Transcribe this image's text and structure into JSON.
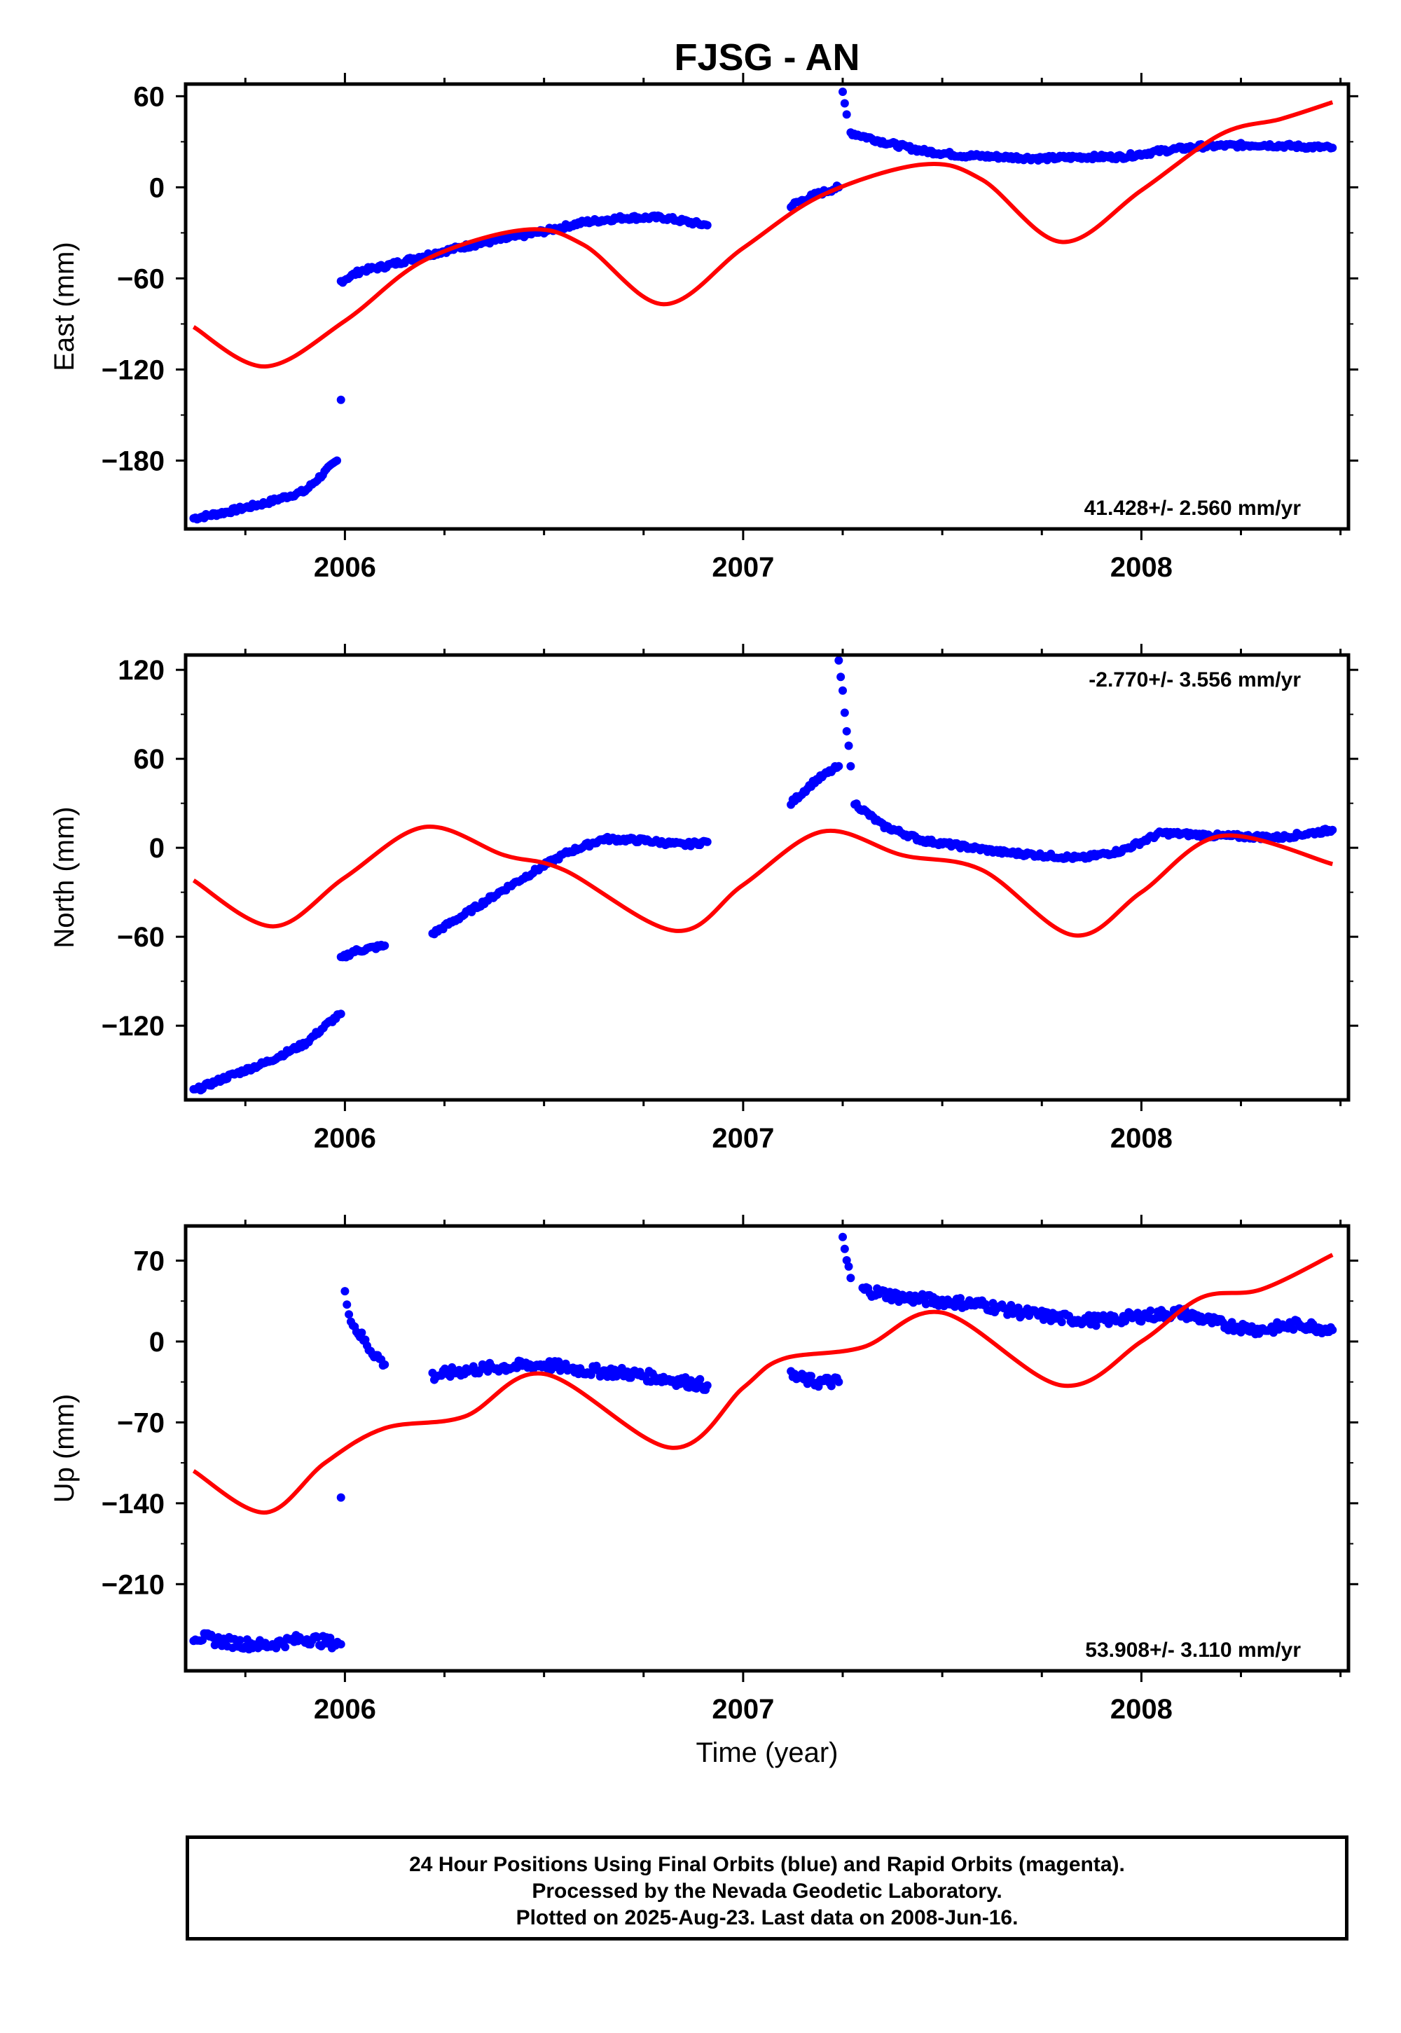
{
  "chart_data": {
    "type": "scatter",
    "title": "FJSG - AN",
    "xlabel": "Time (year)",
    "x_ticks": [
      2006,
      2007,
      2008
    ],
    "x_range": [
      2005.6,
      2008.52
    ],
    "colors": {
      "observed": "#0000ff",
      "model": "#ff0000"
    },
    "panels": [
      {
        "id": "east",
        "ylabel": "East (mm)",
        "ylim": [
          -225,
          68
        ],
        "y_ticks": [
          60,
          0,
          -60,
          -120,
          -180
        ],
        "rate_label": "41.428+/- 2.560 mm/yr",
        "rate_position": "bottom-right",
        "series": [
          {
            "kind": "points",
            "segments": [
              {
                "x": [
                  2005.62,
                  2005.7,
                  2005.8,
                  2005.9,
                  2005.94,
                  2005.98
                ],
                "y": [
                  -218,
                  -214,
                  -208,
                  -200,
                  -190,
                  -180
                ]
              },
              {
                "x": [
                  2005.99
                ],
                "y": [
                  -140
                ]
              },
              {
                "x": [
                  2005.99,
                  2006.04,
                  2006.1,
                  2006.2,
                  2006.3,
                  2006.4,
                  2006.5,
                  2006.6,
                  2006.7,
                  2006.8,
                  2006.91
                ],
                "y": [
                  -62,
                  -55,
                  -52,
                  -45,
                  -39,
                  -34,
                  -29,
                  -23,
                  -20,
                  -20,
                  -25
                ]
              },
              {
                "x": [
                  2007.12,
                  2007.18,
                  2007.24
                ],
                "y": [
                  -12,
                  -5,
                  0
                ]
              },
              {
                "x": [
                  2007.25,
                  2007.26
                ],
                "y": [
                  62,
                  48
                ]
              },
              {
                "x": [
                  2007.27,
                  2007.35,
                  2007.45,
                  2007.55,
                  2007.65,
                  2007.75,
                  2007.85,
                  2007.95,
                  2008.05,
                  2008.15,
                  2008.3,
                  2008.48
                ],
                "y": [
                  36,
                  30,
                  24,
                  21,
                  20,
                  19,
                  20,
                  20,
                  24,
                  27,
                  28,
                  26
                ]
              }
            ]
          },
          {
            "kind": "line",
            "x": [
              2005.62,
              2005.8,
              2006.0,
              2006.2,
              2006.45,
              2006.6,
              2006.8,
              2007.0,
              2007.2,
              2007.45,
              2007.6,
              2007.8,
              2008.0,
              2008.2,
              2008.35,
              2008.48
            ],
            "y": [
              -92,
              -118,
              -88,
              -48,
              -28,
              -38,
              -77,
              -40,
              -5,
              15,
              5,
              -36,
              -2,
              35,
              45,
              56
            ]
          }
        ]
      },
      {
        "id": "north",
        "ylabel": "North (mm)",
        "ylim": [
          -170,
          130
        ],
        "y_ticks": [
          120,
          60,
          0,
          -60,
          -120
        ],
        "rate_label": "-2.770+/- 3.556 mm/yr",
        "rate_position": "top-right",
        "series": [
          {
            "kind": "points",
            "segments": [
              {
                "x": [
                  2005.62,
                  2005.7,
                  2005.8,
                  2005.9,
                  2005.96,
                  2005.99
                ],
                "y": [
                  -164,
                  -155,
                  -145,
                  -132,
                  -118,
                  -112
                ]
              },
              {
                "x": [
                  2005.99,
                  2006.02,
                  2006.1
                ],
                "y": [
                  -75,
                  -70,
                  -66
                ]
              },
              {
                "x": [
                  2006.22,
                  2006.3,
                  2006.4,
                  2006.5,
                  2006.56,
                  2006.65,
                  2006.75,
                  2006.85,
                  2006.91
                ],
                "y": [
                  -58,
                  -45,
                  -28,
                  -12,
                  -3,
                  6,
                  5,
                  2,
                  4
                ]
              },
              {
                "x": [
                  2007.12,
                  2007.18,
                  2007.24
                ],
                "y": [
                  30,
                  45,
                  55
                ]
              },
              {
                "x": [
                  2007.24,
                  2007.25,
                  2007.26,
                  2007.27
                ],
                "y": [
                  125,
                  105,
                  80,
                  55
                ]
              },
              {
                "x": [
                  2007.28,
                  2007.35,
                  2007.45,
                  2007.55,
                  2007.65,
                  2007.75,
                  2007.85,
                  2007.95,
                  2008.05,
                  2008.2,
                  2008.35,
                  2008.48
                ],
                "y": [
                  30,
                  15,
                  5,
                  1,
                  -3,
                  -5,
                  -7,
                  -2,
                  10,
                  8,
                  7,
                  12
                ]
              }
            ]
          },
          {
            "kind": "line",
            "x": [
              2005.62,
              2005.82,
              2006.0,
              2006.2,
              2006.4,
              2006.55,
              2006.83,
              2007.0,
              2007.2,
              2007.4,
              2007.6,
              2007.83,
              2008.0,
              2008.2,
              2008.48
            ],
            "y": [
              -22,
              -53,
              -20,
              14,
              -5,
              -15,
              -56,
              -25,
              11,
              -5,
              -15,
              -59,
              -30,
              8,
              -11
            ]
          }
        ]
      },
      {
        "id": "up",
        "ylabel": "Up (mm)",
        "ylim": [
          -285,
          100
        ],
        "y_ticks": [
          70,
          0,
          -70,
          -140,
          -210
        ],
        "rate_label": "53.908+/- 3.110 mm/yr",
        "rate_position": "bottom-right",
        "series": [
          {
            "kind": "points",
            "segments": [
              {
                "x": [
                  2005.62,
                  2005.7,
                  2005.8,
                  2005.9,
                  2005.99
                ],
                "y": [
                  -255,
                  -260,
                  -263,
                  -257,
                  -262
                ]
              },
              {
                "x": [
                  2005.99
                ],
                "y": [
                  -135
                ]
              },
              {
                "x": [
                  2006.0,
                  2006.02,
                  2006.06,
                  2006.1
                ],
                "y": [
                  40,
                  15,
                  -5,
                  -20
                ]
              },
              {
                "x": [
                  2006.22,
                  2006.3,
                  2006.4,
                  2006.5,
                  2006.6,
                  2006.7,
                  2006.8,
                  2006.91
                ],
                "y": [
                  -30,
                  -25,
                  -22,
                  -20,
                  -25,
                  -27,
                  -32,
                  -38
                ]
              },
              {
                "x": [
                  2007.12,
                  2007.18,
                  2007.24
                ],
                "y": [
                  -30,
                  -35,
                  -35
                ]
              },
              {
                "x": [
                  2007.25,
                  2007.26,
                  2007.27
                ],
                "y": [
                  90,
                  70,
                  55
                ]
              },
              {
                "x": [
                  2007.3,
                  2007.4,
                  2007.5,
                  2007.6,
                  2007.7,
                  2007.8,
                  2007.9,
                  2008.0,
                  2008.1,
                  2008.2,
                  2008.3,
                  2008.4,
                  2008.48
                ],
                "y": [
                  45,
                  38,
                  35,
                  32,
                  25,
                  20,
                  18,
                  22,
                  25,
                  15,
                  10,
                  15,
                  10
                ]
              }
            ]
          },
          {
            "kind": "line",
            "x": [
              2005.62,
              2005.8,
              2005.95,
              2006.1,
              2006.3,
              2006.5,
              2006.82,
              2007.0,
              2007.1,
              2007.3,
              2007.5,
              2007.8,
              2008.0,
              2008.15,
              2008.3,
              2008.48
            ],
            "y": [
              -112,
              -148,
              -105,
              -75,
              -65,
              -28,
              -92,
              -40,
              -15,
              -5,
              25,
              -38,
              0,
              38,
              45,
              75
            ]
          }
        ]
      }
    ]
  },
  "footer": {
    "line1": "24 Hour Positions Using Final Orbits (blue) and Rapid Orbits (magenta).",
    "line2": "Processed by the Nevada Geodetic Laboratory.",
    "line3": "Plotted on 2025-Aug-23. Last data on 2008-Jun-16."
  }
}
